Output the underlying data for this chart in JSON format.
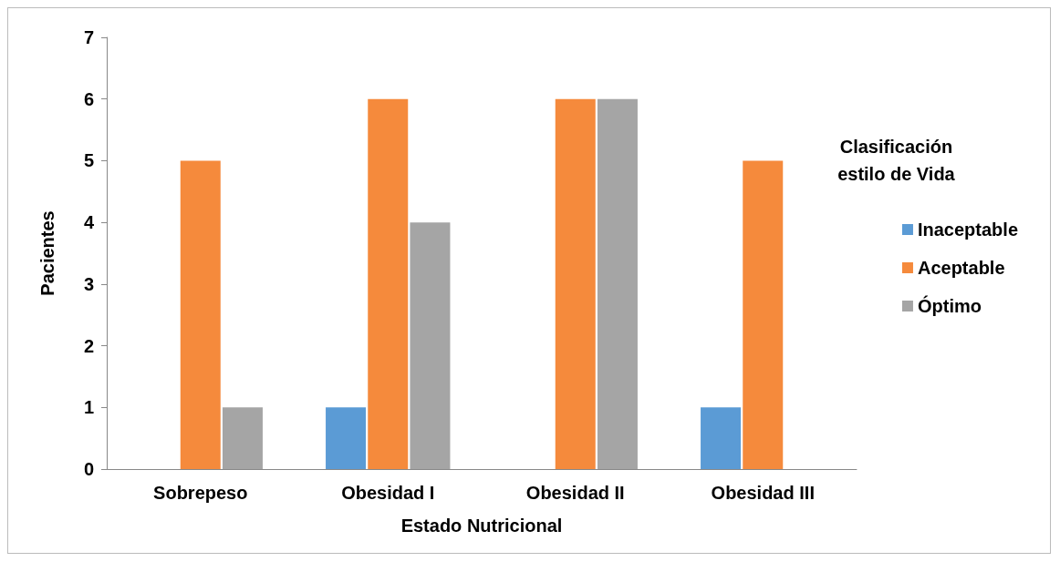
{
  "chart_data": {
    "type": "bar",
    "xlabel": "Estado Nutricional",
    "ylabel": "Pacientes",
    "legend_title": "Clasificación\nestilo de Vida",
    "categories": [
      "Sobrepeso",
      "Obesidad I",
      "Obesidad II",
      "Obesidad III"
    ],
    "series": [
      {
        "name": "Inaceptable",
        "color": "#5b9bd5",
        "values": [
          0,
          1,
          0,
          1
        ]
      },
      {
        "name": "Aceptable",
        "color": "#f58a3c",
        "values": [
          5,
          6,
          6,
          5
        ]
      },
      {
        "name": "Óptimo",
        "color": "#a5a5a5",
        "values": [
          1,
          4,
          6,
          0
        ]
      }
    ],
    "ylim": [
      0,
      7
    ],
    "yticks": [
      0,
      1,
      2,
      3,
      4,
      5,
      6,
      7
    ],
    "grid": false,
    "legend": "right"
  }
}
